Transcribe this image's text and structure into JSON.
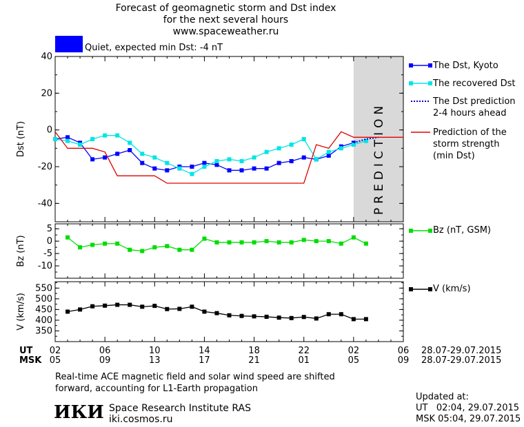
{
  "header": {
    "title_line1": "Forecast of geomagnetic storm and Dst index",
    "title_line2": "for the next several hours",
    "site": "www.spaceweather.ru",
    "status_color": "#0000ff",
    "status_text": "Quiet, expected min Dst: -4 nT"
  },
  "legend": {
    "dst_kyoto": "The Dst, Kyoto",
    "dst_recovered": "The recovered Dst",
    "dst_pred_line1": "The Dst prediction",
    "dst_pred_line2": "2-4 hours ahead",
    "storm_line1": "Prediction of the",
    "storm_line2": "storm strength",
    "storm_line3": "(min Dst)",
    "bz": "Bz (nT, GSM)",
    "v": "V (km/s)"
  },
  "axes": {
    "ut_label": "UT",
    "msk_label": "MSK",
    "ut_range": "28.07-29.07.2015",
    "msk_range": "28.07-29.07.2015",
    "prediction_label": "PREDICTION"
  },
  "footer": {
    "note_line1": "Real-time ACE magnetic field and solar wind speed are shifted",
    "note_line2": "forward, accounting for L1-Earth propagation",
    "logo": "ИКИ",
    "institute": "Space Research Institute RAS",
    "url": "iki.cosmos.ru",
    "updated_label": "Updated at:",
    "updated_ut": "UT   02:04, 29.07.2015",
    "updated_msk": "MSK 05:04, 29.07.2015"
  },
  "chart_data": [
    {
      "type": "line",
      "title": "Forecast of geomagnetic storm and Dst index",
      "ylabel": "Dst (nT)",
      "xlim": [
        0,
        28
      ],
      "ylim": [
        -50,
        40
      ],
      "yticks": [
        -40,
        -20,
        0,
        20,
        40
      ],
      "prediction_band": [
        24,
        28
      ],
      "colors": {
        "dst_kyoto": "#0000ff",
        "dst_recovered": "#00e5e5",
        "dst_prediction": "#0000cc",
        "storm_strength": "#e00000"
      },
      "series": [
        {
          "name": "The Dst, Kyoto",
          "style": "line-square",
          "x": [
            0,
            1,
            2,
            3,
            4,
            5,
            6,
            7,
            8,
            9,
            10,
            11,
            12,
            13,
            14,
            15,
            16,
            17,
            18,
            19,
            20,
            21,
            22,
            23,
            24
          ],
          "y": [
            -5,
            -4,
            -7,
            -16,
            -15,
            -13,
            -11,
            -18,
            -21,
            -22,
            -20,
            -20,
            -18,
            -19,
            -22,
            -22,
            -21,
            -21,
            -18,
            -17,
            -15,
            -16,
            -14,
            -9,
            -7
          ]
        },
        {
          "name": "The recovered Dst",
          "style": "line-square",
          "x": [
            0,
            1,
            2,
            3,
            4,
            5,
            6,
            7,
            8,
            9,
            10,
            11,
            12,
            13,
            14,
            15,
            16,
            17,
            18,
            19,
            20,
            21,
            22,
            23,
            24,
            25
          ],
          "y": [
            -5,
            -6,
            -8,
            -5,
            -3,
            -3,
            -7,
            -13,
            -15,
            -18,
            -21,
            -24,
            -20,
            -17,
            -16,
            -17,
            -15,
            -12,
            -10,
            -8,
            -5,
            -16,
            -12,
            -10,
            -8,
            -6
          ]
        },
        {
          "name": "The Dst prediction 2-4 hours ahead",
          "style": "dotted",
          "x": [
            24,
            25,
            26
          ],
          "y": [
            -7,
            -5,
            -4
          ]
        },
        {
          "name": "Prediction of the storm strength (min Dst)",
          "style": "step",
          "x": [
            0,
            1,
            3,
            4,
            5,
            8,
            9,
            20,
            21,
            22,
            23,
            24,
            28
          ],
          "y": [
            -1,
            -10,
            -10,
            -12,
            -25,
            -25,
            -29,
            -29,
            -8,
            -10,
            -1,
            -4,
            -4
          ]
        }
      ]
    },
    {
      "type": "line",
      "ylabel": "Bz (nT)",
      "xlim": [
        0,
        28
      ],
      "ylim": [
        -15,
        7
      ],
      "yticks": [
        -10,
        -5,
        0,
        5
      ],
      "series": [
        {
          "name": "Bz (nT, GSM)",
          "color": "#00dd00",
          "x": [
            1,
            2,
            3,
            4,
            5,
            6,
            7,
            8,
            9,
            10,
            11,
            12,
            13,
            14,
            15,
            16,
            17,
            18,
            19,
            20,
            21,
            22,
            23,
            24,
            25
          ],
          "y": [
            1.5,
            -2.5,
            -1.5,
            -1,
            -1,
            -3.5,
            -4,
            -2.5,
            -2,
            -3.5,
            -3.5,
            1,
            -0.5,
            -0.5,
            -0.5,
            -0.5,
            0,
            -0.5,
            -0.5,
            0.5,
            0,
            0,
            -1,
            1.5,
            -1
          ]
        }
      ]
    },
    {
      "type": "line",
      "ylabel": "V (km/s)",
      "xlim": [
        0,
        28
      ],
      "ylim": [
        300,
        580
      ],
      "yticks": [
        350,
        400,
        450,
        500,
        550
      ],
      "series": [
        {
          "name": "V (km/s)",
          "color": "#000000",
          "x": [
            1,
            2,
            3,
            4,
            5,
            6,
            7,
            8,
            9,
            10,
            11,
            12,
            13,
            14,
            15,
            16,
            17,
            18,
            19,
            20,
            21,
            22,
            23,
            24,
            25
          ],
          "y": [
            440,
            450,
            465,
            468,
            472,
            472,
            463,
            467,
            452,
            453,
            463,
            440,
            433,
            423,
            420,
            418,
            416,
            412,
            410,
            415,
            408,
            428,
            428,
            405,
            405
          ]
        }
      ],
      "xtick_positions": [
        0,
        4,
        8,
        12,
        16,
        20,
        24,
        28
      ],
      "ut_ticks": [
        "02",
        "06",
        "10",
        "14",
        "18",
        "22",
        "02",
        "06"
      ],
      "msk_ticks": [
        "05",
        "09",
        "13",
        "17",
        "21",
        "01",
        "05",
        "09"
      ]
    }
  ]
}
